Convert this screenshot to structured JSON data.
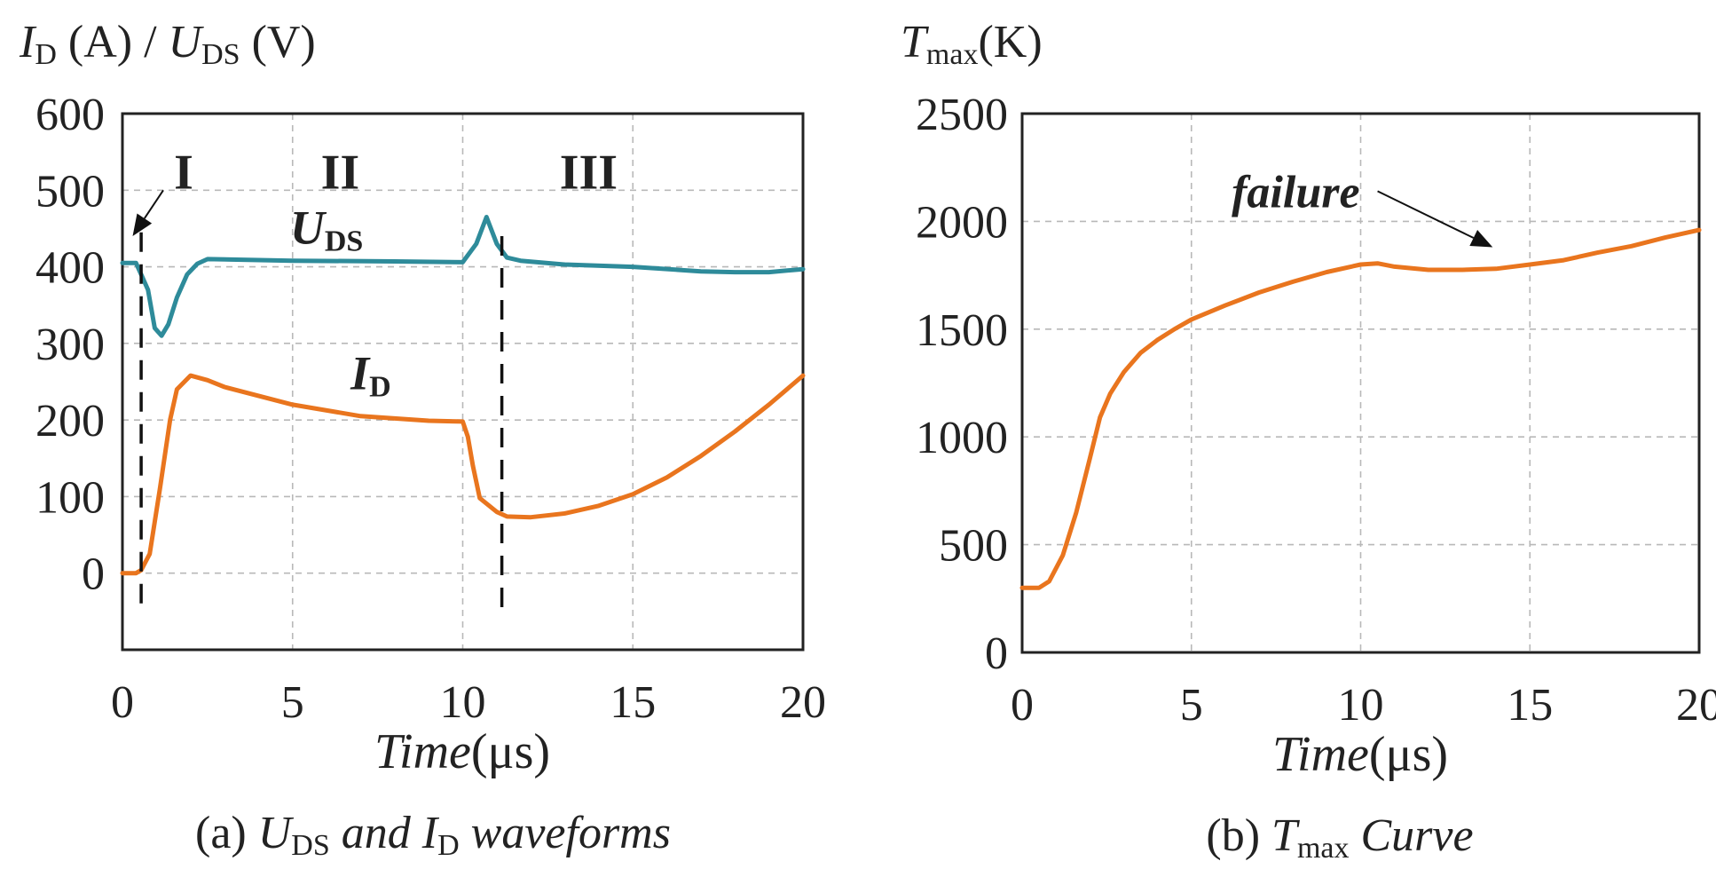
{
  "colors": {
    "ud_series": "#2E8B9A",
    "id_series": "#E9751E",
    "tmax_series": "#E9751E"
  },
  "chart_data": [
    {
      "type": "line",
      "ylabel": {
        "sym": "I",
        "sub": "D",
        "unit": " (A) / ",
        "sym2": "U",
        "sub2": "DS",
        "unit2": " (V)"
      },
      "xlabel": {
        "italic": "Time",
        "unit": "(μs)"
      },
      "caption": {
        "pre": "(a) ",
        "s1": "U",
        "sub1": "DS",
        "mid": " and ",
        "s2": "I",
        "sub2": "D",
        "post": " waveforms"
      },
      "xlim": [
        0,
        20
      ],
      "ylim": [
        -100,
        600
      ],
      "xticks": [
        0,
        5,
        10,
        15,
        20
      ],
      "yticks": [
        0,
        100,
        200,
        300,
        400,
        500,
        600
      ],
      "region_labels": [
        {
          "text": "I",
          "x": 1.8,
          "y": 525
        },
        {
          "text": "II",
          "x": 6.4,
          "y": 525
        },
        {
          "text": "III",
          "x": 13.7,
          "y": 525
        }
      ],
      "marker_lines": [
        {
          "x": 0.55,
          "y_top": 445,
          "y_bottom": -45
        },
        {
          "x": 11.15,
          "y_top": 440,
          "y_bottom": -50
        }
      ],
      "annotations": [
        {
          "text": "I",
          "target_x": 0.3,
          "target_y": 440,
          "from_x": 1.2,
          "from_y": 500
        }
      ],
      "series": [
        {
          "name": "UDS",
          "label_sym": "U",
          "label_sub": "DS",
          "label_x": 6.0,
          "label_y": 430,
          "color_key": "ud_series",
          "x": [
            0,
            0.4,
            0.55,
            0.75,
            0.95,
            1.15,
            1.35,
            1.6,
            1.9,
            2.2,
            2.5,
            5,
            8,
            10,
            10.4,
            10.7,
            11.0,
            11.3,
            11.7,
            13,
            15,
            17,
            18,
            19,
            20
          ],
          "y": [
            405,
            405,
            390,
            370,
            320,
            310,
            325,
            360,
            390,
            404,
            410,
            408,
            407,
            406,
            430,
            465,
            430,
            412,
            408,
            403,
            400,
            394,
            393,
            393,
            397
          ]
        },
        {
          "name": "ID",
          "label_sym": "I",
          "label_sub": "D",
          "label_x": 7.3,
          "label_y": 240,
          "color_key": "id_series",
          "x": [
            0,
            0.4,
            0.55,
            0.8,
            1.1,
            1.4,
            1.6,
            2.0,
            2.5,
            3,
            5,
            7,
            9,
            10,
            10.15,
            10.3,
            10.5,
            11.0,
            11.3,
            12,
            13,
            14,
            15,
            16,
            17,
            18,
            19,
            20
          ],
          "y": [
            0,
            0,
            4,
            25,
            110,
            200,
            240,
            258,
            252,
            243,
            220,
            205,
            199,
            198,
            178,
            140,
            98,
            80,
            74,
            73,
            78,
            88,
            103,
            125,
            153,
            185,
            220,
            258
          ]
        }
      ]
    },
    {
      "type": "line",
      "ylabel": {
        "sym": "T",
        "sub": "max",
        "unit": "(K)"
      },
      "xlabel": {
        "italic": "Time",
        "unit": "(μs)"
      },
      "caption": {
        "pre": "(b) ",
        "s1": "T",
        "sub1": "max",
        "post": " Curve"
      },
      "xlim": [
        0,
        20
      ],
      "ylim": [
        0,
        2500
      ],
      "xticks": [
        0,
        5,
        10,
        15,
        20
      ],
      "yticks": [
        0,
        500,
        1000,
        1500,
        2000,
        2500
      ],
      "annotations": [
        {
          "text": "failure",
          "target_x": 13.9,
          "target_y": 1880,
          "from_x": 10.5,
          "from_y": 2140
        }
      ],
      "series": [
        {
          "name": "Tmax",
          "color_key": "tmax_series",
          "x": [
            0,
            0.5,
            0.8,
            1.2,
            1.6,
            2.0,
            2.3,
            2.6,
            3.0,
            3.5,
            4.0,
            4.5,
            5,
            6,
            7,
            8,
            9,
            10,
            10.5,
            11,
            12,
            13,
            14,
            15,
            16,
            17,
            18,
            19,
            20
          ],
          "y": [
            300,
            300,
            330,
            450,
            650,
            900,
            1090,
            1200,
            1300,
            1390,
            1450,
            1500,
            1545,
            1610,
            1670,
            1720,
            1765,
            1800,
            1805,
            1790,
            1775,
            1775,
            1780,
            1800,
            1820,
            1855,
            1885,
            1925,
            1960
          ]
        }
      ]
    }
  ]
}
